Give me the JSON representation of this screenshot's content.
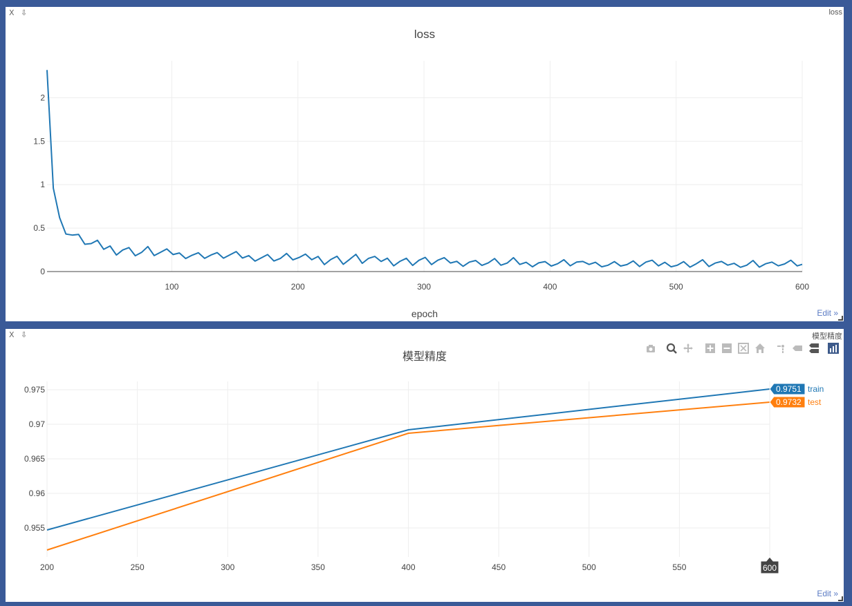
{
  "panes": [
    {
      "name": "loss",
      "close_label": "X",
      "download_label": "⇩",
      "edit_label": "Edit »"
    },
    {
      "name": "模型精度",
      "close_label": "X",
      "download_label": "⇩",
      "edit_label": "Edit »"
    }
  ],
  "modebar": {
    "icons": [
      "camera-icon",
      "zoom-icon",
      "pan-icon",
      "zoom-in-icon",
      "zoom-out-icon",
      "autoscale-icon",
      "home-icon",
      "spike-icon",
      "hover-closest-icon",
      "hover-compare-icon",
      "plotly-logo-icon"
    ]
  },
  "colors": {
    "blue": "#1f77b4",
    "orange": "#ff7f0e",
    "grid": "#eeeeee",
    "text": "#444444"
  },
  "chart_data": [
    {
      "type": "line",
      "title": "loss",
      "xlabel": "epoch",
      "ylabel": "",
      "xlim": [
        1,
        600
      ],
      "ylim": [
        0,
        2.33
      ],
      "xticks": [
        100,
        200,
        300,
        400,
        500,
        600
      ],
      "yticks": [
        0,
        0.5,
        1,
        1.5,
        2
      ],
      "ytick_labels": [
        "0",
        "0.5",
        "1",
        "1.5",
        "2"
      ],
      "series": [
        {
          "color": "#1f77b4",
          "x_start": 1,
          "x_step": 5,
          "values": [
            2.32,
            0.96,
            0.62,
            0.48,
            0.42,
            0.38,
            0.35,
            0.31,
            0.3,
            0.28,
            0.27,
            0.25,
            0.26,
            0.24,
            0.23,
            0.22,
            0.24,
            0.22,
            0.21,
            0.2,
            0.22,
            0.19,
            0.21,
            0.2,
            0.18,
            0.2,
            0.19,
            0.17,
            0.19,
            0.18,
            0.17,
            0.18,
            0.16,
            0.18,
            0.17,
            0.16,
            0.17,
            0.15,
            0.16,
            0.17,
            0.15,
            0.14,
            0.16,
            0.15,
            0.14,
            0.15,
            0.14,
            0.13,
            0.14,
            0.15,
            0.13,
            0.14,
            0.12,
            0.14,
            0.13,
            0.12,
            0.13,
            0.12,
            0.11,
            0.13,
            0.12,
            0.11,
            0.12,
            0.11,
            0.12,
            0.1,
            0.11,
            0.12,
            0.1,
            0.11,
            0.1,
            0.11,
            0.1,
            0.09,
            0.11,
            0.1,
            0.09,
            0.1,
            0.11,
            0.09,
            0.1,
            0.09,
            0.1,
            0.09,
            0.1,
            0.08,
            0.1,
            0.09,
            0.1,
            0.08,
            0.09,
            0.1,
            0.08,
            0.09,
            0.08,
            0.1,
            0.09,
            0.08,
            0.09,
            0.1,
            0.08,
            0.09,
            0.08,
            0.09,
            0.1,
            0.08,
            0.09,
            0.08,
            0.09,
            0.08,
            0.09,
            0.08,
            0.1,
            0.08,
            0.09,
            0.08,
            0.09,
            0.08,
            0.09,
            0.08,
            0.07
          ]
        }
      ]
    },
    {
      "type": "line",
      "title": "模型精度",
      "xlabel": "",
      "ylabel": "",
      "xlim": [
        200,
        600
      ],
      "ylim": [
        0.9508,
        0.9762
      ],
      "xticks": [
        200,
        250,
        300,
        350,
        400,
        450,
        500,
        550,
        600
      ],
      "yticks": [
        0.955,
        0.96,
        0.965,
        0.97,
        0.975
      ],
      "ytick_labels": [
        "0.955",
        "0.96",
        "0.965",
        "0.97",
        "0.975"
      ],
      "x": [
        200,
        400,
        600
      ],
      "series": [
        {
          "name": "train",
          "color": "#1f77b4",
          "values": [
            0.9547,
            0.9692,
            0.9751
          ]
        },
        {
          "name": "test",
          "color": "#ff7f0e",
          "values": [
            0.9518,
            0.9687,
            0.9732
          ]
        }
      ],
      "hover": {
        "x_label": "600",
        "labels": [
          "0.9751",
          "0.9732"
        ],
        "series_names": [
          "train",
          "test"
        ]
      }
    }
  ]
}
